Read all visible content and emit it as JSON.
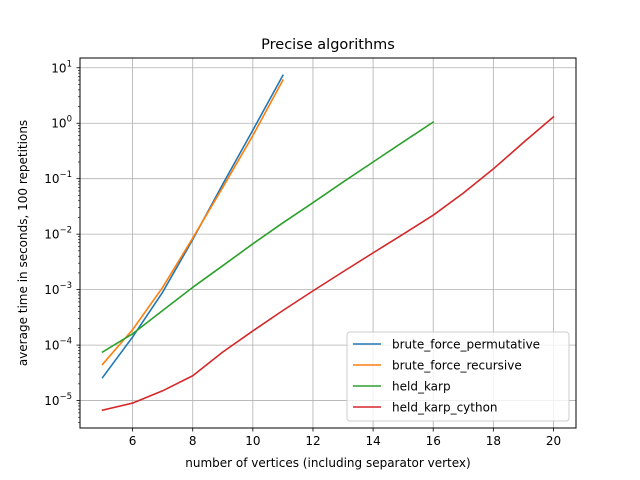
{
  "chart_data": {
    "type": "line",
    "title": "Precise algorithms",
    "xlabel": "number of vertices (including separator vertex)",
    "ylabel": "average time in seconds, 100 repetitions",
    "xlim": [
      4.25,
      20.75
    ],
    "ylim": [
      3.2e-06,
      15
    ],
    "yscale": "log",
    "grid": true,
    "legend_position": "lower-right",
    "x_ticks": [
      6,
      8,
      10,
      12,
      14,
      16,
      18,
      20
    ],
    "x_tick_labels": [
      "6",
      "8",
      "10",
      "12",
      "14",
      "16",
      "18",
      "20"
    ],
    "y_ticks": [
      1e-05,
      0.0001,
      0.001,
      0.01,
      0.1,
      1,
      10
    ],
    "y_tick_labels": [
      {
        "base": "10",
        "exp": "−5"
      },
      {
        "base": "10",
        "exp": "−4"
      },
      {
        "base": "10",
        "exp": "−3"
      },
      {
        "base": "10",
        "exp": "−2"
      },
      {
        "base": "10",
        "exp": "−1"
      },
      {
        "base": "10",
        "exp": "0"
      },
      {
        "base": "10",
        "exp": "1"
      }
    ],
    "series": [
      {
        "name": "brute_force_permutative",
        "color": "#1f77b4",
        "x": [
          5,
          6,
          7,
          8,
          9,
          10,
          11
        ],
        "y": [
          2.6e-05,
          0.00014,
          0.0009,
          0.008,
          0.08,
          0.75,
          7.3
        ]
      },
      {
        "name": "brute_force_recursive",
        "color": "#ff7f0e",
        "x": [
          5,
          6,
          7,
          8,
          9,
          10,
          11
        ],
        "y": [
          4.5e-05,
          0.00019,
          0.0011,
          0.0085,
          0.07,
          0.6,
          6.0
        ]
      },
      {
        "name": "held_karp",
        "color": "#2ca02c",
        "x": [
          5,
          6,
          7,
          8,
          9,
          10,
          11,
          12,
          13,
          14,
          15,
          16
        ],
        "y": [
          7.5e-05,
          0.00016,
          0.00042,
          0.0011,
          0.0027,
          0.0067,
          0.016,
          0.037,
          0.087,
          0.2,
          0.46,
          1.05
        ]
      },
      {
        "name": "held_karp_cython",
        "color": "#d62728",
        "x": [
          5,
          6,
          7,
          8,
          9,
          10,
          11,
          12,
          13,
          14,
          15,
          16,
          17,
          18,
          19,
          20
        ],
        "y": [
          6.7e-06,
          9e-06,
          1.5e-05,
          2.8e-05,
          7.5e-05,
          0.00018,
          0.00042,
          0.00095,
          0.0021,
          0.0046,
          0.01,
          0.022,
          0.055,
          0.15,
          0.45,
          1.3
        ]
      }
    ]
  }
}
